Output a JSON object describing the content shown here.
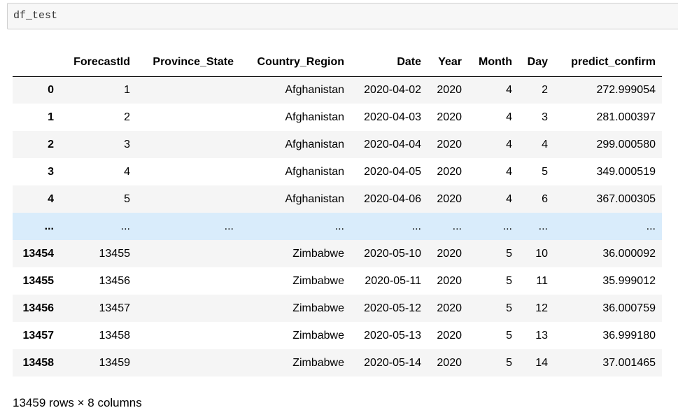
{
  "cell": {
    "code": "df_test"
  },
  "table": {
    "columns": [
      "",
      "ForecastId",
      "Province_State",
      "Country_Region",
      "Date",
      "Year",
      "Month",
      "Day",
      "predict_confirm"
    ],
    "rows": [
      [
        "0",
        "1",
        "",
        "Afghanistan",
        "2020-04-02",
        "2020",
        "4",
        "2",
        "272.999054"
      ],
      [
        "1",
        "2",
        "",
        "Afghanistan",
        "2020-04-03",
        "2020",
        "4",
        "3",
        "281.000397"
      ],
      [
        "2",
        "3",
        "",
        "Afghanistan",
        "2020-04-04",
        "2020",
        "4",
        "4",
        "299.000580"
      ],
      [
        "3",
        "4",
        "",
        "Afghanistan",
        "2020-04-05",
        "2020",
        "4",
        "5",
        "349.000519"
      ],
      [
        "4",
        "5",
        "",
        "Afghanistan",
        "2020-04-06",
        "2020",
        "4",
        "6",
        "367.000305"
      ],
      [
        "...",
        "...",
        "...",
        "...",
        "...",
        "...",
        "...",
        "...",
        "..."
      ],
      [
        "13454",
        "13455",
        "",
        "Zimbabwe",
        "2020-05-10",
        "2020",
        "5",
        "10",
        "36.000092"
      ],
      [
        "13455",
        "13456",
        "",
        "Zimbabwe",
        "2020-05-11",
        "2020",
        "5",
        "11",
        "35.999012"
      ],
      [
        "13456",
        "13457",
        "",
        "Zimbabwe",
        "2020-05-12",
        "2020",
        "5",
        "12",
        "36.000759"
      ],
      [
        "13457",
        "13458",
        "",
        "Zimbabwe",
        "2020-05-13",
        "2020",
        "5",
        "13",
        "36.999180"
      ],
      [
        "13458",
        "13459",
        "",
        "Zimbabwe",
        "2020-05-14",
        "2020",
        "5",
        "14",
        "37.001465"
      ]
    ],
    "highlighted_row": 5
  },
  "footer": "13459 rows × 8 columns",
  "colors": {
    "stripe": "#f5f5f5",
    "hover": "#d9ecfb",
    "input_bg": "#f7f7f7"
  }
}
